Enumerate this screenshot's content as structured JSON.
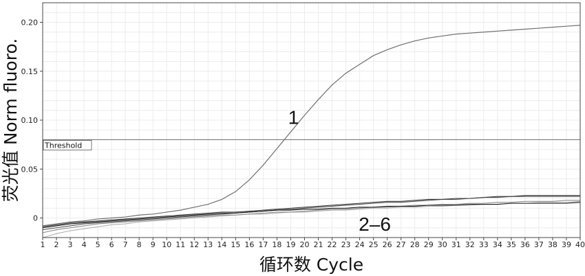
{
  "chart_data": {
    "type": "line",
    "xlabel": "循环数 Cycle",
    "ylabel": "荧光值 Norm fluoro.",
    "xlim": [
      1,
      40
    ],
    "ylim": [
      -0.02,
      0.22
    ],
    "x_ticks": [
      1,
      2,
      3,
      4,
      5,
      6,
      7,
      8,
      9,
      10,
      11,
      12,
      13,
      14,
      15,
      16,
      17,
      18,
      19,
      20,
      21,
      22,
      23,
      24,
      25,
      26,
      27,
      28,
      29,
      30,
      31,
      32,
      33,
      34,
      35,
      36,
      37,
      38,
      39,
      40
    ],
    "y_ticks": [
      {
        "value": 0,
        "label": "0"
      },
      {
        "value": 0.05,
        "label": "0.05"
      },
      {
        "value": 0.1,
        "label": "0.10"
      },
      {
        "value": 0.15,
        "label": "0.15"
      },
      {
        "value": 0.2,
        "label": "0.20"
      }
    ],
    "grid": true,
    "threshold": {
      "value": 0.08,
      "label": "Threshold"
    },
    "annotations": [
      {
        "text": "1",
        "x": 19.2,
        "y": 0.103
      },
      {
        "text": "2–6",
        "x": 25.1,
        "y": -0.006
      }
    ],
    "x": [
      1,
      2,
      3,
      4,
      5,
      6,
      7,
      8,
      9,
      10,
      11,
      12,
      13,
      14,
      15,
      16,
      17,
      18,
      19,
      20,
      21,
      22,
      23,
      24,
      25,
      26,
      27,
      28,
      29,
      30,
      31,
      32,
      33,
      34,
      35,
      36,
      37,
      38,
      39,
      40
    ],
    "series": [
      {
        "name": "1",
        "color": "#6e6e6e",
        "values": [
          -0.008,
          -0.006,
          -0.004,
          -0.003,
          -0.001,
          0.0,
          0.001,
          0.003,
          0.004,
          0.006,
          0.008,
          0.011,
          0.014,
          0.019,
          0.027,
          0.039,
          0.054,
          0.071,
          0.088,
          0.105,
          0.121,
          0.136,
          0.148,
          0.157,
          0.166,
          0.172,
          0.177,
          0.181,
          0.184,
          0.186,
          0.188,
          0.189,
          0.19,
          0.191,
          0.192,
          0.193,
          0.194,
          0.195,
          0.196,
          0.197
        ]
      },
      {
        "color": "#1a1a1a",
        "values": [
          -0.01,
          -0.008,
          -0.006,
          -0.005,
          -0.004,
          -0.003,
          -0.002,
          -0.001,
          0.0,
          0.001,
          0.002,
          0.003,
          0.004,
          0.005,
          0.005,
          0.006,
          0.007,
          0.008,
          0.008,
          0.009,
          0.009,
          0.01,
          0.01,
          0.011,
          0.011,
          0.012,
          0.012,
          0.012,
          0.013,
          0.013,
          0.013,
          0.014,
          0.014,
          0.014,
          0.015,
          0.015,
          0.015,
          0.015,
          0.015,
          0.016
        ]
      },
      {
        "color": "#3a3a3a",
        "values": [
          -0.009,
          -0.007,
          -0.005,
          -0.004,
          -0.003,
          -0.002,
          -0.001,
          0.0,
          0.001,
          0.002,
          0.003,
          0.004,
          0.005,
          0.006,
          0.006,
          0.007,
          0.008,
          0.009,
          0.01,
          0.011,
          0.012,
          0.013,
          0.014,
          0.015,
          0.016,
          0.017,
          0.017,
          0.018,
          0.019,
          0.019,
          0.02,
          0.02,
          0.021,
          0.022,
          0.022,
          0.023,
          0.023,
          0.023,
          0.023,
          0.023
        ]
      },
      {
        "color": "#555555",
        "values": [
          -0.012,
          -0.01,
          -0.008,
          -0.006,
          -0.005,
          -0.004,
          -0.003,
          -0.002,
          -0.001,
          0.0,
          0.001,
          0.002,
          0.003,
          0.004,
          0.005,
          0.006,
          0.007,
          0.008,
          0.009,
          0.01,
          0.011,
          0.012,
          0.013,
          0.014,
          0.015,
          0.016,
          0.016,
          0.017,
          0.018,
          0.019,
          0.019,
          0.02,
          0.021,
          0.021,
          0.022,
          0.022,
          0.022,
          0.022,
          0.022,
          0.022
        ]
      },
      {
        "color": "#8a8a8a",
        "values": [
          -0.015,
          -0.012,
          -0.01,
          -0.008,
          -0.006,
          -0.005,
          -0.004,
          -0.003,
          -0.002,
          -0.001,
          0.0,
          0.001,
          0.002,
          0.003,
          0.003,
          0.004,
          0.005,
          0.006,
          0.006,
          0.007,
          0.008,
          0.009,
          0.009,
          0.01,
          0.011,
          0.011,
          0.012,
          0.013,
          0.013,
          0.014,
          0.014,
          0.015,
          0.015,
          0.016,
          0.016,
          0.017,
          0.017,
          0.017,
          0.018,
          0.018
        ]
      },
      {
        "color": "#b0b0b0",
        "values": [
          -0.02,
          -0.016,
          -0.013,
          -0.011,
          -0.009,
          -0.007,
          -0.006,
          -0.004,
          -0.003,
          -0.002,
          -0.001,
          0.0,
          0.001,
          0.002,
          0.003,
          0.004,
          0.004,
          0.005,
          0.006,
          0.006,
          0.007,
          0.008,
          0.008,
          0.009,
          0.01,
          0.01,
          0.011,
          0.011,
          0.012,
          0.012,
          0.013,
          0.013,
          0.014,
          0.014,
          0.015,
          0.015,
          0.016,
          0.016,
          0.016,
          0.017
        ]
      }
    ]
  }
}
